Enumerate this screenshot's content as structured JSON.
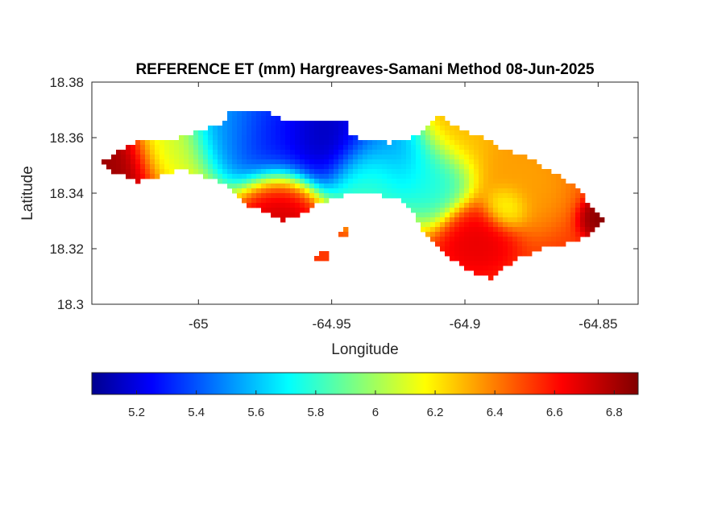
{
  "chart_data": {
    "type": "heatmap",
    "title": "REFERENCE ET (mm) Hargreaves-Samani Method  08-Jun-2025",
    "xlabel": "Longitude",
    "ylabel": "Latitude",
    "xlim": [
      -65.04,
      -64.835
    ],
    "ylim": [
      18.3,
      18.38
    ],
    "xticks": [
      {
        "value": -65,
        "label": "-65"
      },
      {
        "value": -64.95,
        "label": "-64.95"
      },
      {
        "value": -64.9,
        "label": "-64.9"
      },
      {
        "value": -64.85,
        "label": "-64.85"
      }
    ],
    "yticks": [
      {
        "value": 18.38,
        "label": "18.38"
      },
      {
        "value": 18.36,
        "label": "18.36"
      },
      {
        "value": 18.34,
        "label": "18.34"
      },
      {
        "value": 18.32,
        "label": "18.32"
      },
      {
        "value": 18.3,
        "label": "18.3"
      }
    ],
    "colormap": "jet",
    "colorbar": {
      "orientation": "horizontal",
      "placement": "below",
      "range": [
        5.05,
        6.88
      ],
      "ticks": [
        {
          "value": 5.2,
          "label": "5.2"
        },
        {
          "value": 5.4,
          "label": "5.4"
        },
        {
          "value": 5.6,
          "label": "5.6"
        },
        {
          "value": 5.8,
          "label": "5.8"
        },
        {
          "value": 6.0,
          "label": "6"
        },
        {
          "value": 6.2,
          "label": "6.2"
        },
        {
          "value": 6.4,
          "label": "6.4"
        },
        {
          "value": 6.6,
          "label": "6.6"
        },
        {
          "value": 6.8,
          "label": "6.8"
        }
      ]
    },
    "field": {
      "value_min": 5.05,
      "value_max": 6.88,
      "background": 6.55,
      "features": [
        {
          "lon": -64.952,
          "lat": 18.3615,
          "value": 5.05,
          "radius": 0.015
        },
        {
          "lon": -64.975,
          "lat": 18.362,
          "value": 5.25,
          "radius": 0.016
        },
        {
          "lon": -64.99,
          "lat": 18.364,
          "value": 5.55,
          "radius": 0.012
        },
        {
          "lon": -64.93,
          "lat": 18.353,
          "value": 5.5,
          "radius": 0.014
        },
        {
          "lon": -64.912,
          "lat": 18.345,
          "value": 5.75,
          "radius": 0.012
        },
        {
          "lon": -64.935,
          "lat": 18.345,
          "value": 5.9,
          "radius": 0.01
        },
        {
          "lon": -64.9,
          "lat": 18.362,
          "value": 6.3,
          "radius": 0.012
        },
        {
          "lon": -64.88,
          "lat": 18.345,
          "value": 6.35,
          "radius": 0.014
        },
        {
          "lon": -64.885,
          "lat": 18.335,
          "value": 6.1,
          "radius": 0.006
        },
        {
          "lon": -65.01,
          "lat": 18.358,
          "value": 6.1,
          "radius": 0.012
        },
        {
          "lon": -65.032,
          "lat": 18.351,
          "value": 6.85,
          "radius": 0.012
        },
        {
          "lon": -64.848,
          "lat": 18.331,
          "value": 6.88,
          "radius": 0.006
        },
        {
          "lon": -64.97,
          "lat": 18.335,
          "value": 6.75,
          "radius": 0.01
        },
        {
          "lon": -64.895,
          "lat": 18.325,
          "value": 6.7,
          "radius": 0.01
        }
      ],
      "regions": [
        {
          "name": "main-island",
          "outline": [
            [
              -65.037,
              18.3512
            ],
            [
              -65.03,
              18.3548
            ],
            [
              -65.022,
              18.3588
            ],
            [
              -65.01,
              18.3595
            ],
            [
              -65.003,
              18.3612
            ],
            [
              -65.0,
              18.3625
            ],
            [
              -64.99,
              18.3655
            ],
            [
              -64.988,
              18.3695
            ],
            [
              -64.976,
              18.3698
            ],
            [
              -64.968,
              18.3668
            ],
            [
              -64.955,
              18.3662
            ],
            [
              -64.945,
              18.3665
            ],
            [
              -64.943,
              18.3612
            ],
            [
              -64.936,
              18.3585
            ],
            [
              -64.928,
              18.3582
            ],
            [
              -64.92,
              18.3602
            ],
            [
              -64.915,
              18.3628
            ],
            [
              -64.912,
              18.3655
            ],
            [
              -64.91,
              18.3685
            ],
            [
              -64.914,
              18.3738
            ],
            [
              -64.918,
              18.3768
            ],
            [
              -64.91,
              18.3698
            ],
            [
              -64.905,
              18.3642
            ],
            [
              -64.894,
              18.3602
            ],
            [
              -64.885,
              18.3555
            ],
            [
              -64.878,
              18.3535
            ],
            [
              -64.868,
              18.3482
            ],
            [
              -64.86,
              18.3432
            ],
            [
              -64.855,
              18.3385
            ],
            [
              -64.852,
              18.3342
            ],
            [
              -64.847,
              18.3302
            ],
            [
              -64.852,
              18.3262
            ],
            [
              -64.86,
              18.3222
            ],
            [
              -64.872,
              18.3198
            ],
            [
              -64.88,
              18.3165
            ],
            [
              -64.885,
              18.3132
            ],
            [
              -64.89,
              18.3092
            ],
            [
              -64.9,
              18.3128
            ],
            [
              -64.908,
              18.3182
            ],
            [
              -64.915,
              18.3245
            ],
            [
              -64.918,
              18.3298
            ],
            [
              -64.92,
              18.3345
            ],
            [
              -64.925,
              18.3385
            ],
            [
              -64.935,
              18.3395
            ],
            [
              -64.945,
              18.3392
            ],
            [
              -64.955,
              18.3362
            ],
            [
              -64.962,
              18.3322
            ],
            [
              -64.968,
              18.3302
            ],
            [
              -64.973,
              18.3322
            ],
            [
              -64.978,
              18.3348
            ],
            [
              -64.983,
              18.3362
            ],
            [
              -64.99,
              18.3432
            ],
            [
              -64.998,
              18.3462
            ],
            [
              -65.005,
              18.3485
            ],
            [
              -65.012,
              18.3472
            ],
            [
              -65.018,
              18.3448
            ],
            [
              -65.023,
              18.3442
            ],
            [
              -65.028,
              18.3462
            ],
            [
              -65.033,
              18.3472
            ],
            [
              -65.037,
              18.3512
            ]
          ]
        },
        {
          "name": "islet-south",
          "outline": [
            [
              -64.9545,
              18.3182
            ],
            [
              -64.9525,
              18.3195
            ],
            [
              -64.9505,
              18.3185
            ],
            [
              -64.9515,
              18.3162
            ],
            [
              -64.9545,
              18.3148
            ],
            [
              -64.9565,
              18.3165
            ],
            [
              -64.9545,
              18.3182
            ]
          ]
        },
        {
          "name": "islet-mid",
          "outline": [
            [
              -64.948,
              18.3262
            ],
            [
              -64.944,
              18.3275
            ],
            [
              -64.942,
              18.3262
            ],
            [
              -64.944,
              18.3245
            ],
            [
              -64.948,
              18.3245
            ],
            [
              -64.948,
              18.3262
            ]
          ]
        }
      ]
    }
  }
}
